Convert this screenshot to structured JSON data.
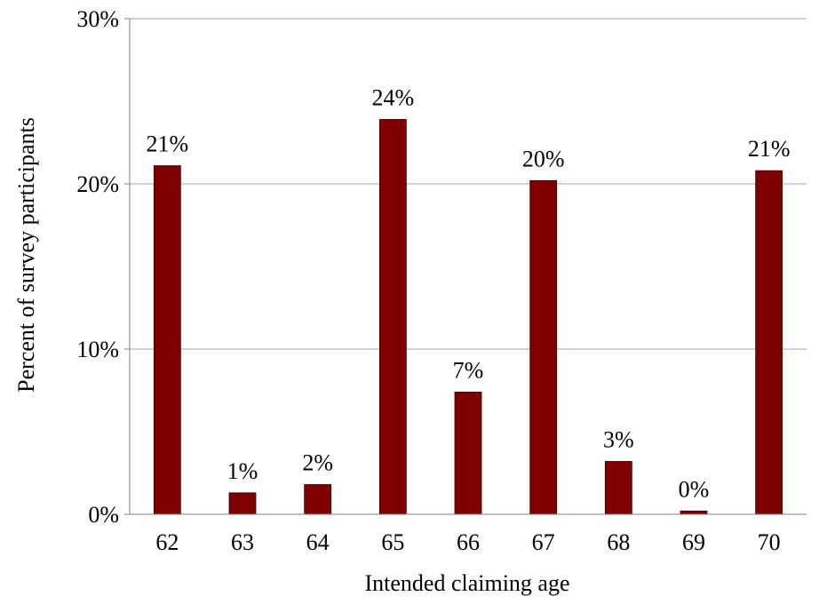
{
  "chart_data": {
    "type": "bar",
    "categories": [
      "62",
      "63",
      "64",
      "65",
      "66",
      "67",
      "68",
      "69",
      "70"
    ],
    "values": [
      21.1,
      1.3,
      1.8,
      23.9,
      7.4,
      20.2,
      3.2,
      0.2,
      20.8
    ],
    "data_labels": [
      "21%",
      "1%",
      "2%",
      "24%",
      "7%",
      "20%",
      "3%",
      "0%",
      "21%"
    ],
    "title": "",
    "xlabel": "Intended claiming age",
    "ylabel": "Percent of survey participants",
    "ylim": [
      0,
      30
    ],
    "yticks": [
      0,
      10,
      20,
      30
    ],
    "ytick_labels": [
      "0%",
      "10%",
      "20%",
      "30%"
    ],
    "grid": true,
    "legend": "none",
    "bar_color": "#7f0000",
    "gridline_color": "#a6a6a6"
  }
}
